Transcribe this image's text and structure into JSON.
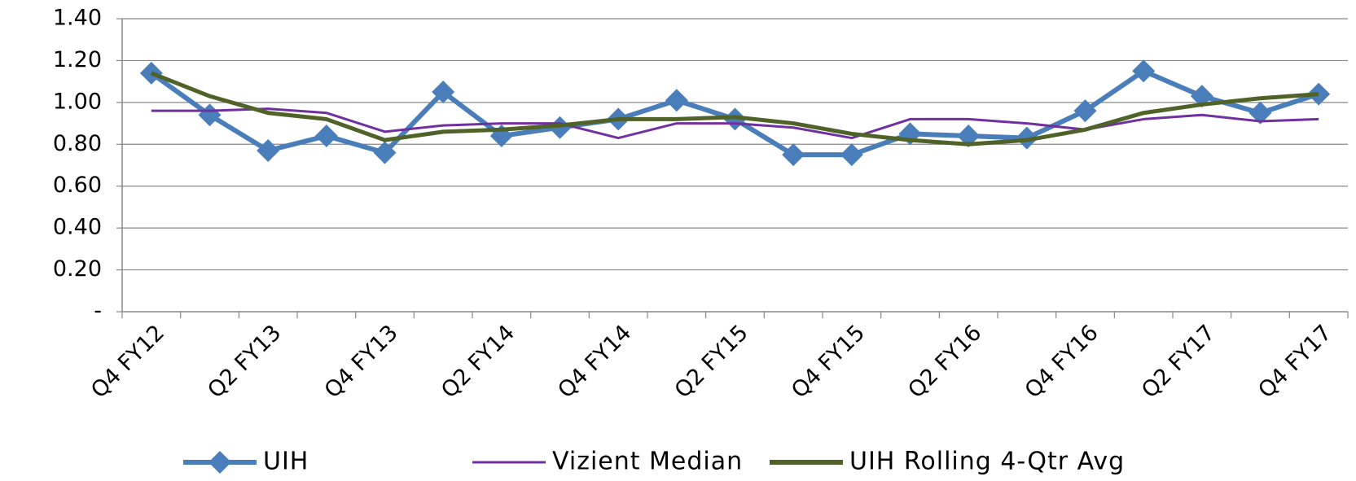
{
  "chart_data": {
    "type": "line",
    "categories": [
      "Q4 FY12",
      null,
      "Q2 FY13",
      null,
      "Q4 FY13",
      null,
      "Q2 FY14",
      null,
      "Q4 FY14",
      null,
      "Q2 FY15",
      null,
      "Q4 FY15",
      null,
      "Q2 FY16",
      null,
      "Q4 FY16",
      null,
      "Q2 FY17",
      null,
      "Q4 FY17"
    ],
    "series": [
      {
        "name": "UIH",
        "color": "#4a7ebb",
        "marker": "diamond",
        "values": [
          1.14,
          0.94,
          0.77,
          0.84,
          0.76,
          1.05,
          0.84,
          0.88,
          0.92,
          1.01,
          0.92,
          0.75,
          0.75,
          0.85,
          0.84,
          0.83,
          0.96,
          1.15,
          1.03,
          0.95,
          1.04
        ]
      },
      {
        "name": "Vizient Median",
        "color": "#7030a0",
        "values": [
          0.96,
          0.96,
          0.97,
          0.95,
          0.86,
          0.89,
          0.9,
          0.9,
          0.83,
          0.9,
          0.9,
          0.88,
          0.83,
          0.92,
          0.92,
          0.9,
          0.87,
          0.92,
          0.94,
          0.91,
          0.92
        ]
      },
      {
        "name": "UIH Rolling 4-Qtr Avg",
        "color": "#4f6228",
        "values": [
          1.14,
          1.03,
          0.95,
          0.92,
          0.82,
          0.86,
          0.87,
          0.89,
          0.92,
          0.92,
          0.93,
          0.9,
          0.85,
          0.82,
          0.8,
          0.82,
          0.87,
          0.95,
          0.99,
          1.02,
          1.04
        ]
      }
    ],
    "ylim": [
      0,
      1.4
    ],
    "yticks": [
      {
        "value": 0,
        "label": "-"
      },
      {
        "value": 0.2,
        "label": "0.20"
      },
      {
        "value": 0.4,
        "label": "0.40"
      },
      {
        "value": 0.6,
        "label": "0.60"
      },
      {
        "value": 0.8,
        "label": "0.80"
      },
      {
        "value": 1.0,
        "label": "1.00"
      },
      {
        "value": 1.2,
        "label": "1.20"
      },
      {
        "value": 1.4,
        "label": "1.40"
      }
    ],
    "grid": true,
    "legend": "bottom"
  }
}
